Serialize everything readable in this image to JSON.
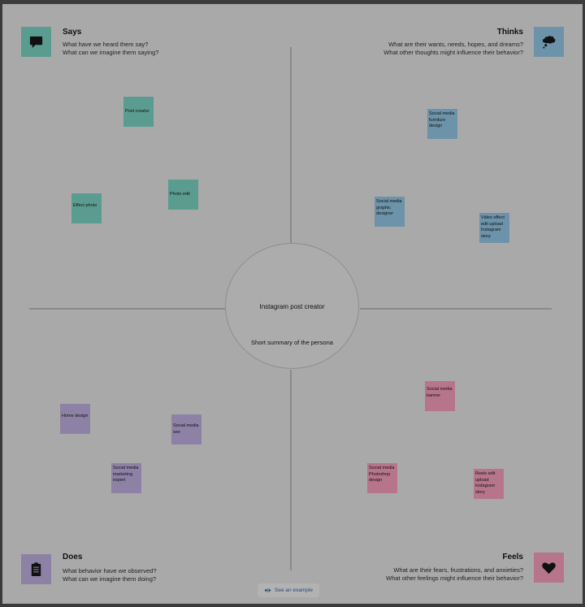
{
  "quadrants": {
    "says": {
      "title": "Says",
      "line1": "What have we heard them say?",
      "line2": "What can we imagine them saying?",
      "icon": "speech-bubble-icon",
      "color": "#5b9c90"
    },
    "thinks": {
      "title": "Thinks",
      "line1": "What are their wants, needs, hopes, and dreams?",
      "line2": "What other thoughts might influence their behavior?",
      "icon": "thought-cloud-icon",
      "color": "#6c93aa"
    },
    "does": {
      "title": "Does",
      "line1": "What behavior have we observed?",
      "line2": "What can we imagine them doing?",
      "icon": "clipboard-icon",
      "color": "#8d82a5"
    },
    "feels": {
      "title": "Feels",
      "line1": "What are their fears, frustrations, and anxieties?",
      "line2": "What other feelings might influence their behavior?",
      "icon": "heart-icon",
      "color": "#b7758c"
    }
  },
  "center": {
    "persona": "Instagram post creator",
    "summary": "Short summary of the persona"
  },
  "stickies": {
    "says": [
      "Post creator",
      "Photo edit",
      "Effect photo"
    ],
    "thinks": [
      "Social media furniture design",
      "Social media graphic designer",
      "Video effect edit upload Instagram story"
    ],
    "does": [
      "Home design",
      "Social media seo",
      "Social media marketing expert"
    ],
    "feels": [
      "Social media banner",
      "Social media Photoshop design",
      "Reels edit upload instagram story"
    ]
  },
  "example_button": {
    "label": "See an example",
    "icon": "eye-icon"
  }
}
